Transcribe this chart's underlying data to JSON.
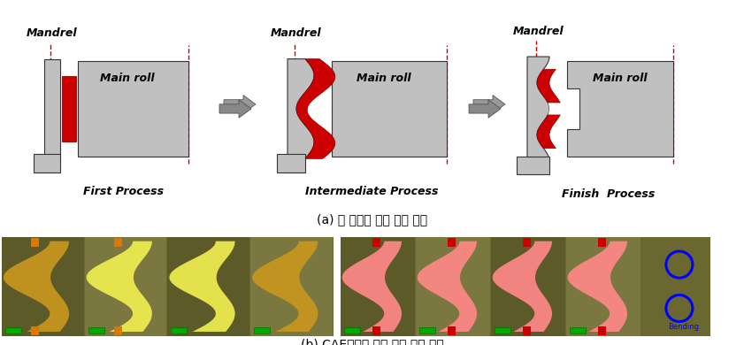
{
  "title_a": "(a) 각 패스별 금형 형상 설계",
  "title_b": "(b) CAE해석을 통한 금형 설계 검증",
  "label_mandrel": "Mandrel",
  "label_mainroll": "Main roll",
  "label_first": "First Process",
  "label_intermediate": "Intermediate Process",
  "label_finish": "Finish  Process",
  "bg_color": "#ffffff",
  "gray": "#c0c0c0",
  "dark_gray": "#777777",
  "red": "#cc0000",
  "dashed_red": "#cc0000"
}
